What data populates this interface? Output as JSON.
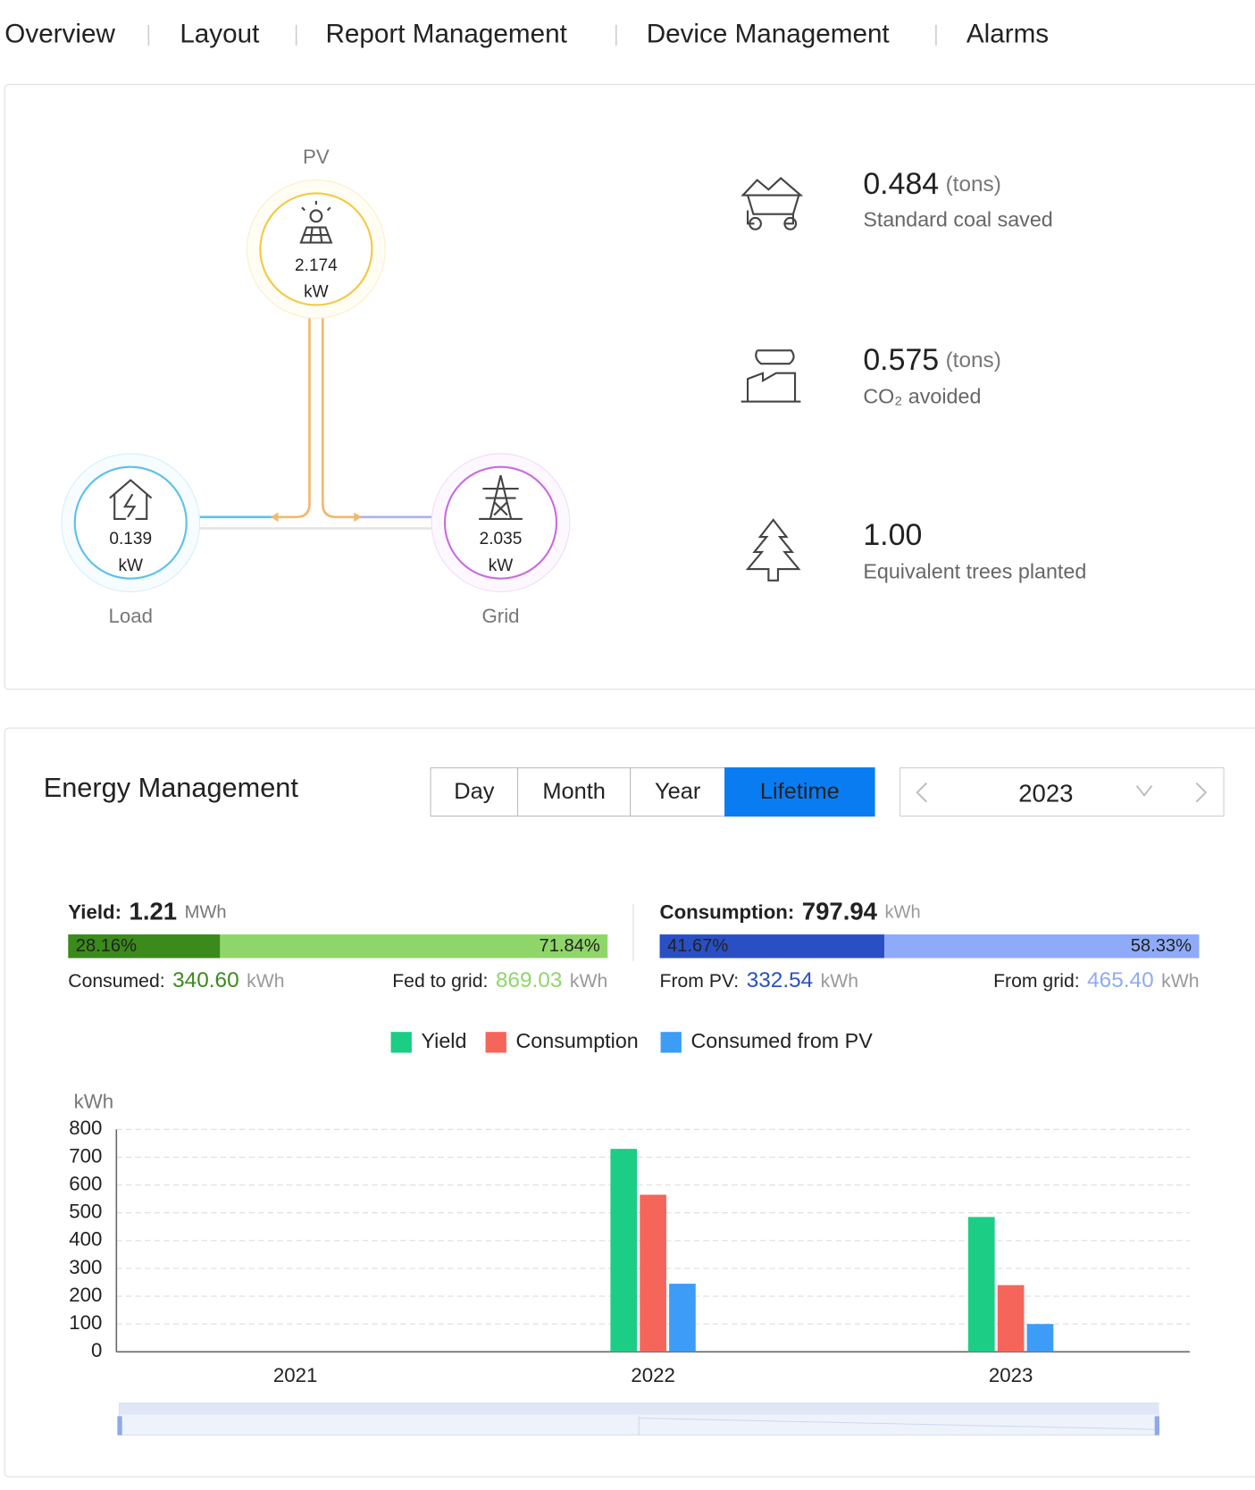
{
  "nav": {
    "items": [
      "Overview",
      "Layout",
      "Report Management",
      "Device Management",
      "Alarms"
    ],
    "active": 0
  },
  "flow": {
    "pv": {
      "label": "PV",
      "value": "2.174",
      "unit": "kW"
    },
    "load": {
      "label": "Load",
      "value": "0.139",
      "unit": "kW"
    },
    "grid": {
      "label": "Grid",
      "value": "2.035",
      "unit": "kW"
    }
  },
  "stats": [
    {
      "value": "0.484",
      "unit": "(tons)",
      "label": "Standard coal saved"
    },
    {
      "value": "0.575",
      "unit": "(tons)",
      "label": "CO₂ avoided"
    },
    {
      "value": "1.00",
      "label": "Equivalent trees planted"
    }
  ],
  "energy": {
    "title": "Energy Management",
    "tabs": [
      "Day",
      "Month",
      "Year",
      "Lifetime"
    ],
    "active_tab": 3,
    "period": "2023",
    "yield": {
      "label": "Yield:",
      "total": "1.21",
      "unit": "MWh",
      "split": [
        {
          "value": 28.16,
          "label": "28.16%"
        },
        {
          "value": 71.84,
          "label": "71.84%"
        }
      ],
      "left": {
        "label": "Consumed:",
        "value": "340.60",
        "unit": "kWh"
      },
      "right": {
        "label": "Fed to grid:",
        "value": "869.03",
        "unit": "kWh"
      }
    },
    "consumption": {
      "label": "Consumption:",
      "total": "797.94",
      "unit": "kWh",
      "split": [
        {
          "value": 41.67,
          "label": "41.67%"
        },
        {
          "value": 58.33,
          "label": "58.33%"
        }
      ],
      "left": {
        "label": "From PV:",
        "value": "332.54",
        "unit": "kWh"
      },
      "right": {
        "label": "From grid:",
        "value": "465.40",
        "unit": "kWh"
      }
    }
  },
  "chart_data": {
    "type": "bar",
    "y_label": "kWh",
    "categories": [
      "2021",
      "2022",
      "2023"
    ],
    "series": [
      {
        "name": "Yield",
        "color": "#1ccd85",
        "values": [
          0,
          730,
          485
        ]
      },
      {
        "name": "Consumption",
        "color": "#f5655a",
        "values": [
          0,
          565,
          240
        ]
      },
      {
        "name": "Consumed from PV",
        "color": "#3d9cf5",
        "values": [
          0,
          245,
          100
        ]
      }
    ],
    "ylim": [
      0,
      800
    ],
    "yticks": [
      0,
      100,
      200,
      300,
      400,
      500,
      600,
      700,
      800
    ],
    "grid": true
  }
}
